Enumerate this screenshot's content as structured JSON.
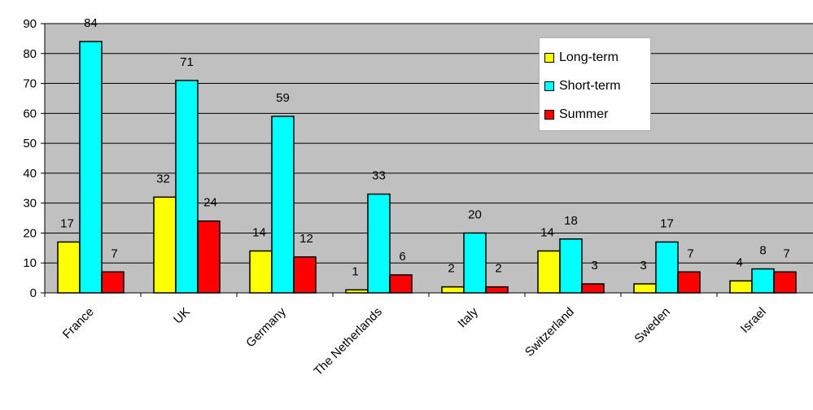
{
  "chart_data": {
    "type": "bar",
    "categories": [
      "France",
      "UK",
      "Germany",
      "The Netherlands",
      "Italy",
      "Switzerland",
      "Sweden",
      "Israel"
    ],
    "series": [
      {
        "name": "Long-term",
        "color": "#ffff00",
        "values": [
          17,
          32,
          14,
          1,
          2,
          14,
          3,
          4
        ]
      },
      {
        "name": "Short-term",
        "color": "#00ffff",
        "values": [
          84,
          71,
          59,
          33,
          20,
          18,
          17,
          8
        ]
      },
      {
        "name": "Summer",
        "color": "#ff0000",
        "values": [
          7,
          24,
          12,
          6,
          2,
          3,
          7,
          7
        ]
      }
    ],
    "ylim": [
      0,
      90
    ],
    "yticks": [
      0,
      10,
      20,
      30,
      40,
      50,
      60,
      70,
      80,
      90
    ],
    "grid": true,
    "legend_position": "top-right",
    "plot_background": "#c0c0c0"
  }
}
